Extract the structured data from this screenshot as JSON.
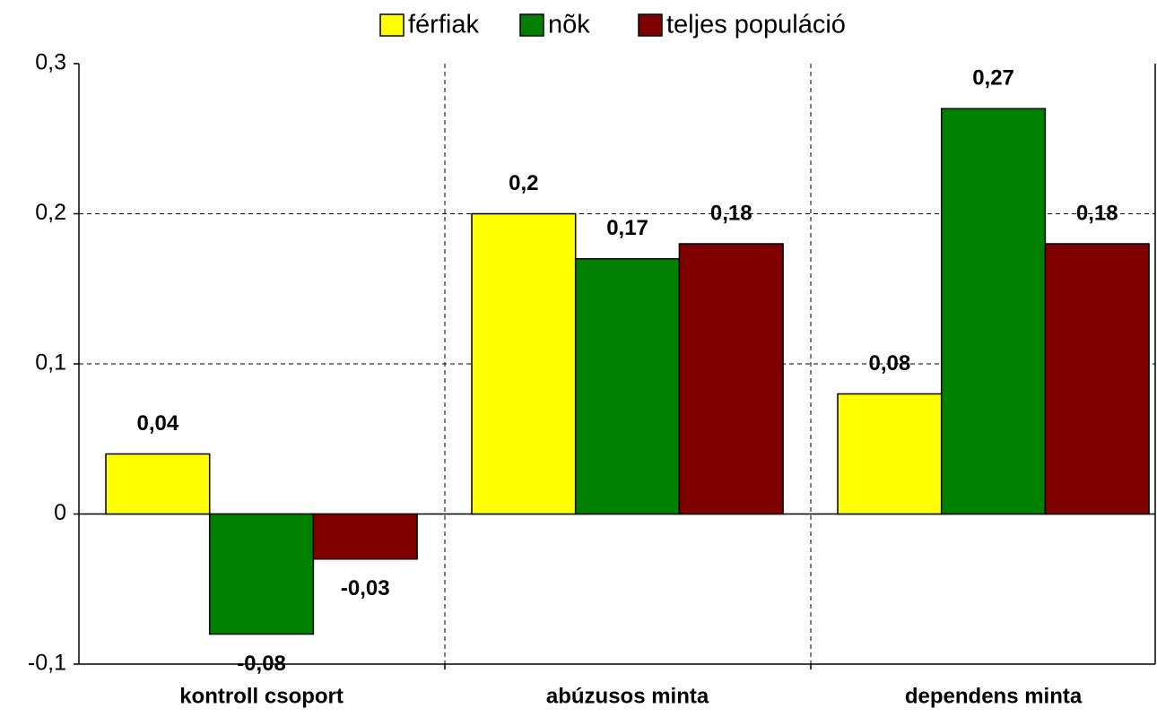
{
  "chart_data": {
    "type": "bar",
    "categories": [
      "kontroll csoport",
      "abúzusos minta",
      "dependens minta"
    ],
    "series": [
      {
        "name": "férfiak",
        "color": "#ffff00",
        "values": [
          0.04,
          0.2,
          0.08
        ],
        "value_labels": [
          "0,04",
          "0,2",
          "0,08"
        ]
      },
      {
        "name": "nõk",
        "color": "#008000",
        "values": [
          -0.08,
          0.17,
          0.27
        ],
        "value_labels": [
          "-0,08",
          "0,17",
          "0,27"
        ]
      },
      {
        "name": "teljes populáció",
        "color": "#800000",
        "values": [
          -0.03,
          0.18,
          0.18
        ],
        "value_labels": [
          "-0,03",
          "0,18",
          "0,18"
        ]
      }
    ],
    "ylim": [
      -0.1,
      0.3
    ],
    "yticks": [
      {
        "value": -0.1,
        "label": "-0,1"
      },
      0,
      {
        "value": 0.1,
        "label": "0,1"
      },
      {
        "value": 0.2,
        "label": "0,2"
      },
      {
        "value": 0.3,
        "label": "0,3"
      }
    ],
    "grid": true,
    "legend": "top"
  }
}
